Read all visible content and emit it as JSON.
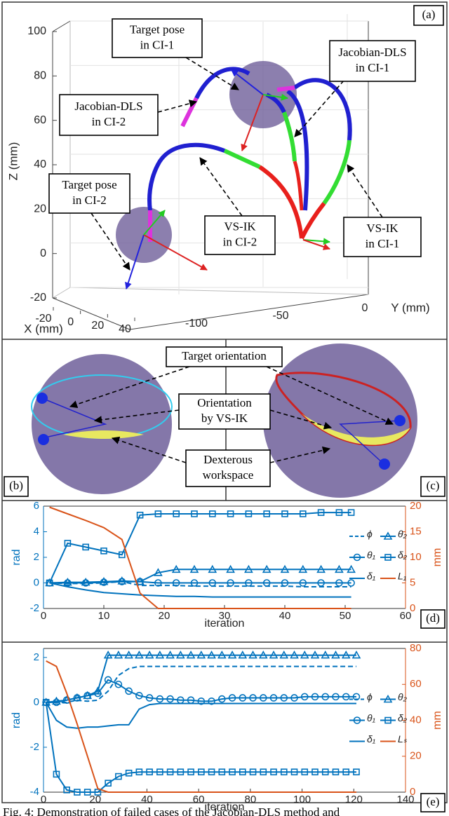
{
  "panel_a": {
    "label": "(a)",
    "zlabel": "Z (mm)",
    "ylabel": "Y (mm)",
    "xlabel": "X (mm)",
    "zlim": [
      -20,
      100
    ],
    "zticks": [
      -20,
      0,
      20,
      40,
      60,
      80,
      100
    ],
    "ylim": [
      -100,
      0
    ],
    "yticks": [
      0,
      -50,
      -100
    ],
    "xlim": [
      -20,
      40
    ],
    "xticks": [
      -20,
      0,
      20,
      40
    ],
    "annotations": [
      {
        "lines": [
          "Target pose",
          "in CI-1"
        ]
      },
      {
        "lines": [
          "Jacobian-DLS",
          "in CI-1"
        ]
      },
      {
        "lines": [
          "Jacobian-DLS",
          "in CI-2"
        ]
      },
      {
        "lines": [
          "Target pose",
          "in CI-2"
        ]
      },
      {
        "lines": [
          "VS-IK",
          "in CI-2"
        ]
      },
      {
        "lines": [
          "VS-IK",
          "in CI-1"
        ]
      }
    ]
  },
  "panel_bc": {
    "labels": [
      "(b)",
      "(c)"
    ],
    "annotations": [
      {
        "lines": [
          "Target orientation"
        ]
      },
      {
        "lines": [
          "Orientation",
          "by VS-IK"
        ]
      },
      {
        "lines": [
          "Dexterous",
          "workspace"
        ]
      }
    ]
  },
  "chart_data": [
    {
      "type": "line",
      "label": "(d)",
      "xlabel": "iteration",
      "ylabel": "rad",
      "y2label": "mm",
      "xlim": [
        0,
        60
      ],
      "xticks": [
        0,
        10,
        20,
        30,
        40,
        50,
        60
      ],
      "ylim": [
        -2,
        6
      ],
      "yticks": [
        -2,
        0,
        2,
        4,
        6
      ],
      "y2lim": [
        0,
        20
      ],
      "y2ticks": [
        0,
        5,
        10,
        15,
        20
      ],
      "grid": false,
      "legend": "center right",
      "x": [
        1,
        4,
        7,
        10,
        13,
        16,
        19,
        22,
        25,
        28,
        31,
        34,
        37,
        40,
        43,
        46,
        49,
        51
      ],
      "series": [
        {
          "name": "ϕ",
          "color": "#0072bd",
          "line": "dashed",
          "values": [
            0,
            -0.05,
            -0.05,
            0,
            0.1,
            -0.2,
            -0.2,
            -0.2,
            -0.25,
            -0.25,
            -0.25,
            -0.25,
            -0.25,
            -0.25,
            -0.3,
            -0.3,
            -0.3,
            -0.3
          ]
        },
        {
          "name": "θ₂",
          "color": "#0072bd",
          "line": "solid",
          "marker": "triangle",
          "values": [
            0,
            0.05,
            0.05,
            0.1,
            0.15,
            0.1,
            0.8,
            1.05,
            1.05,
            1.05,
            1.05,
            1.05,
            1.05,
            1.05,
            1.05,
            1.05,
            1.05,
            1.05
          ]
        },
        {
          "name": "θ₁",
          "color": "#0072bd",
          "line": "solid",
          "marker": "circle",
          "values": [
            0,
            0,
            0,
            0.05,
            0.1,
            0.1,
            0,
            0,
            0,
            0,
            0,
            0,
            0,
            0,
            0,
            0,
            0,
            0
          ]
        },
        {
          "name": "δ₂",
          "color": "#0072bd",
          "line": "solid",
          "marker": "square",
          "values": [
            0,
            3.1,
            2.8,
            2.5,
            2.2,
            5.3,
            5.4,
            5.4,
            5.4,
            5.4,
            5.4,
            5.4,
            5.4,
            5.4,
            5.4,
            5.5,
            5.5,
            5.5
          ]
        },
        {
          "name": "δ₁",
          "color": "#0072bd",
          "line": "solid",
          "values": [
            0,
            -0.3,
            -0.55,
            -0.75,
            -0.85,
            -0.95,
            -1.0,
            -1.05,
            -1.05,
            -1.1,
            -1.1,
            -1.1,
            -1.1,
            -1.1,
            -1.1,
            -1.1,
            -1.1,
            -1.1
          ]
        },
        {
          "name": "L₁",
          "color": "#d95319",
          "line": "solid",
          "axis": "y2",
          "values": [
            19.8,
            18.5,
            17.2,
            15.8,
            13.5,
            3,
            0,
            0,
            0,
            0,
            0,
            0,
            0,
            0,
            0,
            0,
            0,
            0
          ]
        }
      ]
    },
    {
      "type": "line",
      "label": "(e)",
      "xlabel": "iteration",
      "ylabel": "rad",
      "y2label": "mm",
      "xlim": [
        0,
        140
      ],
      "xticks": [
        0,
        20,
        40,
        60,
        80,
        100,
        120,
        140
      ],
      "ylim": [
        -4,
        2.4
      ],
      "yticks": [
        -4,
        -2,
        0,
        2
      ],
      "y2lim": [
        0,
        80
      ],
      "y2ticks": [
        0,
        20,
        40,
        60,
        80
      ],
      "grid": false,
      "legend": "center right",
      "x": [
        1,
        5,
        9,
        13,
        17,
        21,
        25,
        29,
        33,
        37,
        41,
        45,
        49,
        53,
        57,
        61,
        65,
        69,
        73,
        77,
        81,
        85,
        89,
        93,
        97,
        101,
        105,
        109,
        113,
        117,
        121
      ],
      "series": [
        {
          "name": "ϕ",
          "color": "#0072bd",
          "line": "dashed",
          "values": [
            0,
            0,
            0,
            0.1,
            0.05,
            0.1,
            0.5,
            1.2,
            1.5,
            1.6,
            1.6,
            1.6,
            1.6,
            1.6,
            1.6,
            1.6,
            1.6,
            1.6,
            1.6,
            1.6,
            1.6,
            1.6,
            1.6,
            1.6,
            1.6,
            1.6,
            1.6,
            1.6,
            1.6,
            1.6,
            1.6
          ]
        },
        {
          "name": "θ₂",
          "color": "#0072bd",
          "line": "solid",
          "marker": "triangle",
          "values": [
            0,
            0.05,
            0.1,
            0.2,
            0.3,
            0.5,
            2.1,
            2.1,
            2.1,
            2.1,
            2.1,
            2.1,
            2.1,
            2.1,
            2.1,
            2.1,
            2.1,
            2.1,
            2.1,
            2.1,
            2.1,
            2.1,
            2.1,
            2.1,
            2.1,
            2.1,
            2.1,
            2.1,
            2.1,
            2.1,
            2.1
          ]
        },
        {
          "name": "θ₁",
          "color": "#0072bd",
          "line": "solid",
          "marker": "circle",
          "values": [
            0,
            0,
            0.1,
            0.2,
            0.3,
            0.4,
            1.0,
            0.8,
            0.5,
            0.3,
            0.2,
            0.15,
            0.15,
            0.1,
            0.1,
            0.05,
            0.05,
            0.15,
            0.2,
            0.2,
            0.2,
            0.2,
            0.2,
            0.2,
            0.2,
            0.25,
            0.25,
            0.25,
            0.25,
            0.25,
            0.25
          ]
        },
        {
          "name": "δ₂",
          "color": "#0072bd",
          "line": "solid",
          "marker": "square",
          "values": [
            0,
            -3.2,
            -3.9,
            -4,
            -4,
            -4,
            -3.6,
            -3.3,
            -3.15,
            -3.1,
            -3.1,
            -3.1,
            -3.1,
            -3.1,
            -3.1,
            -3.1,
            -3.1,
            -3.1,
            -3.1,
            -3.1,
            -3.1,
            -3.1,
            -3.1,
            -3.1,
            -3.1,
            -3.1,
            -3.1,
            -3.1,
            -3.1,
            -3.1,
            -3.1
          ]
        },
        {
          "name": "δ₁",
          "color": "#0072bd",
          "line": "solid",
          "values": [
            0,
            -0.8,
            -1.1,
            -1.15,
            -1.1,
            -1.1,
            -1.05,
            -1.0,
            -1.0,
            -0.3,
            -0.1,
            -0.05,
            -0.05,
            -0.05,
            -0.05,
            -0.05,
            -0.05,
            -0.05,
            -0.05,
            -0.05,
            -0.05,
            -0.05,
            -0.05,
            -0.05,
            -0.05,
            -0.05,
            -0.05,
            -0.05,
            -0.05,
            -0.05,
            -0.05
          ]
        },
        {
          "name": "Lₛ",
          "color": "#d95319",
          "line": "solid",
          "axis": "y2",
          "values": [
            73,
            70,
            55,
            38,
            20,
            2,
            0,
            0,
            0,
            0,
            0,
            0,
            0,
            0,
            0,
            0,
            0,
            0,
            0,
            0,
            0,
            0,
            0,
            0,
            0,
            0,
            0,
            0,
            0,
            0,
            0
          ]
        }
      ]
    }
  ],
  "caption": "Fig. 4: Demonstration of failed cases of the Jacobian-DLS method and"
}
